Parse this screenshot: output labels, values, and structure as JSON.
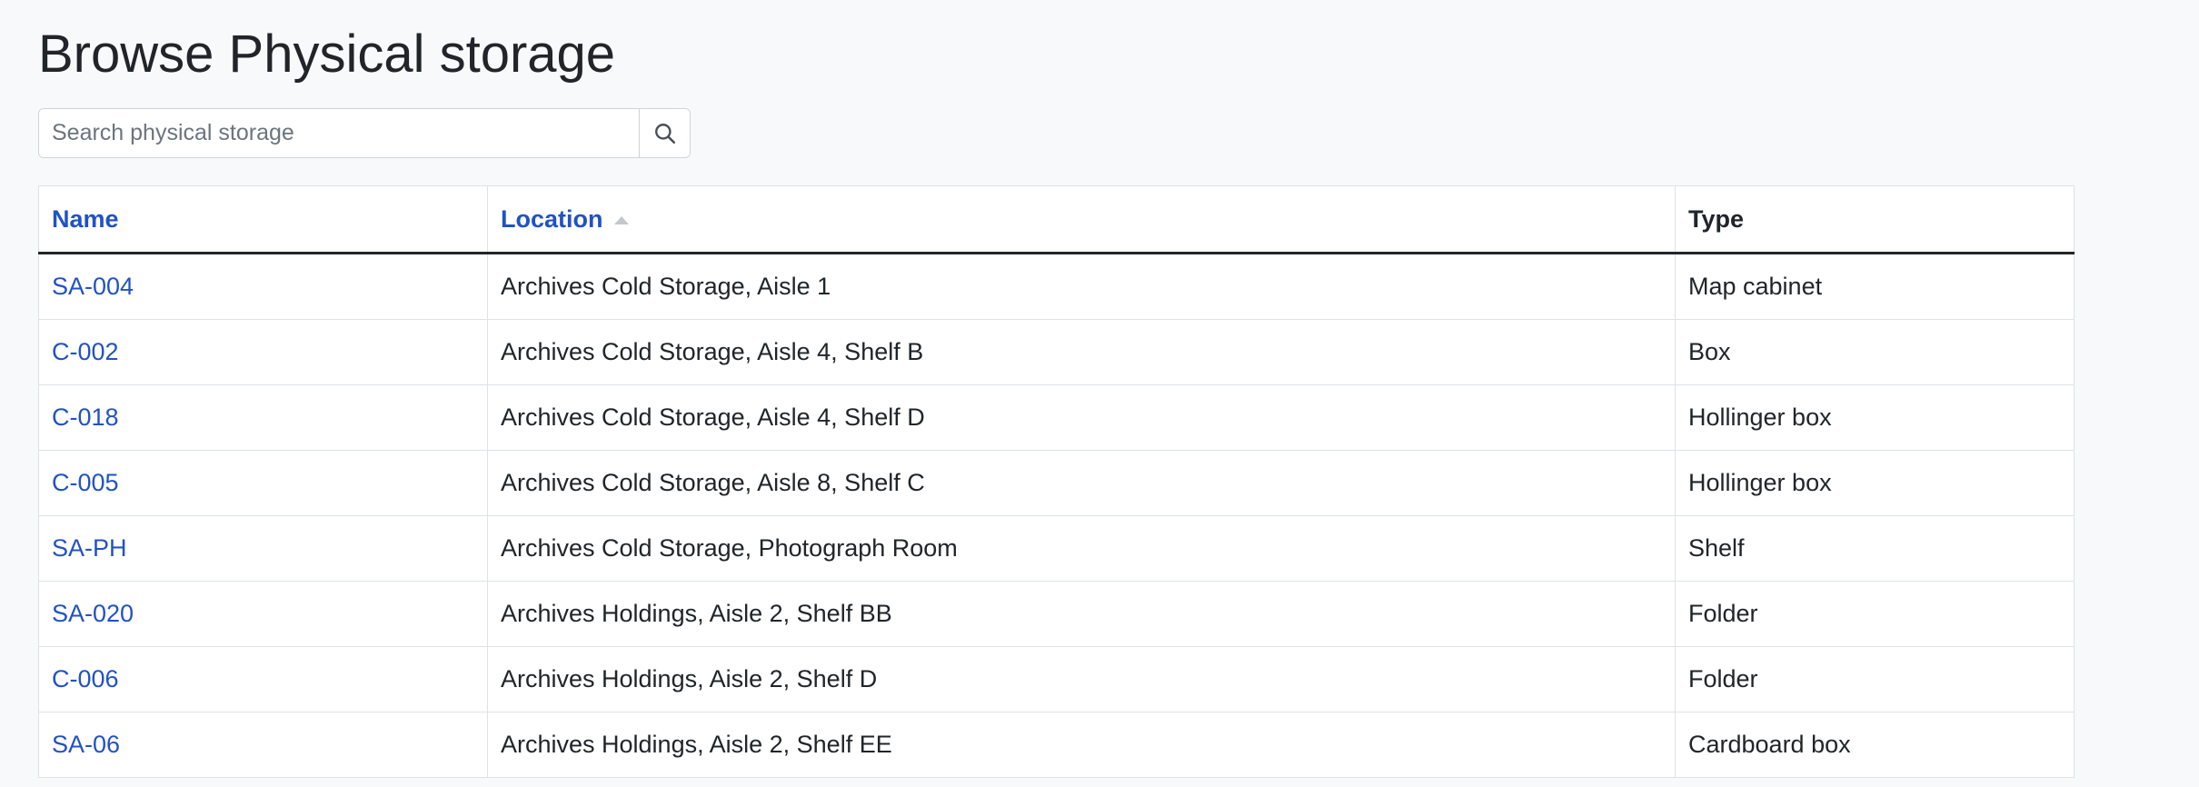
{
  "page_title": "Browse Physical storage",
  "search": {
    "placeholder": "Search physical storage",
    "value": "",
    "icon": "search-icon"
  },
  "table": {
    "columns": [
      {
        "label": "Name",
        "sortable": true
      },
      {
        "label": "Location",
        "sortable": true,
        "sorted": "ascending"
      },
      {
        "label": "Type",
        "sortable": false
      }
    ],
    "rows": [
      {
        "name": "SA-004",
        "location": "Archives Cold Storage, Aisle 1",
        "type": "Map cabinet"
      },
      {
        "name": "C-002",
        "location": "Archives Cold Storage, Aisle 4, Shelf B",
        "type": "Box"
      },
      {
        "name": "C-018",
        "location": "Archives Cold Storage, Aisle 4, Shelf D",
        "type": "Hollinger box"
      },
      {
        "name": "C-005",
        "location": "Archives Cold Storage, Aisle 8, Shelf C",
        "type": "Hollinger box"
      },
      {
        "name": "SA-PH",
        "location": "Archives Cold Storage, Photograph Room",
        "type": "Shelf"
      },
      {
        "name": "SA-020",
        "location": "Archives Holdings, Aisle 2, Shelf BB",
        "type": "Folder"
      },
      {
        "name": "C-006",
        "location": "Archives Holdings, Aisle 2, Shelf D",
        "type": "Folder"
      },
      {
        "name": "SA-06",
        "location": "Archives Holdings, Aisle 2, Shelf EE",
        "type": "Cardboard box"
      }
    ]
  },
  "colors": {
    "link": "#2152c4",
    "background": "#f8f9fa"
  }
}
